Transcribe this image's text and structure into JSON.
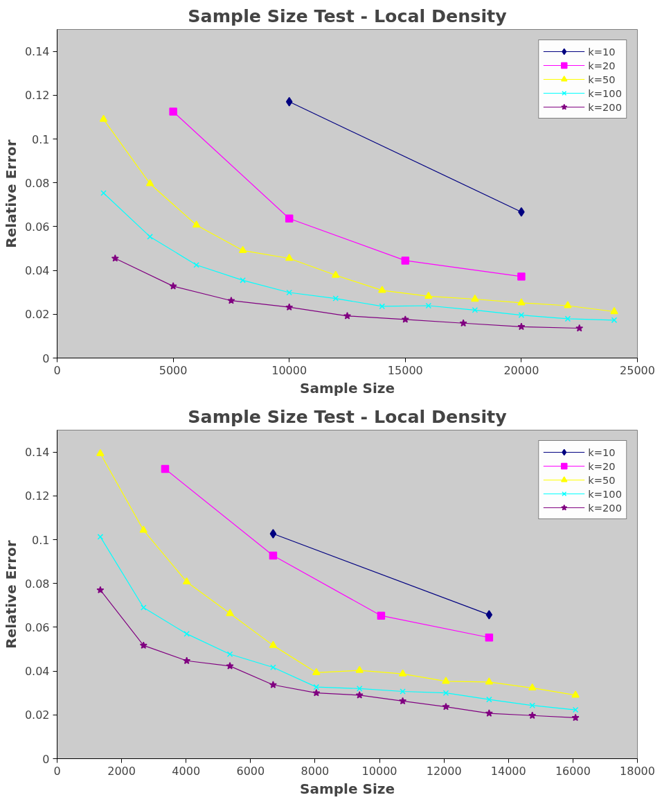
{
  "chart_data": [
    {
      "type": "line",
      "title": "Sample Size Test - Local Density",
      "xlabel": "Sample Size",
      "ylabel": "Relative Error",
      "xlim": [
        0,
        25000
      ],
      "xticks": [
        0,
        5000,
        10000,
        15000,
        20000,
        25000
      ],
      "ylim": [
        0,
        0.15
      ],
      "yticks": [
        0,
        0.02,
        0.04,
        0.06,
        0.08,
        0.1,
        0.12,
        0.14
      ],
      "grid": false,
      "legend": "top right",
      "series": [
        {
          "name": "k=10",
          "color": "#000080",
          "marker": "diamond",
          "x": [
            10000,
            20000
          ],
          "values": [
            0.117,
            0.0667
          ]
        },
        {
          "name": "k=20",
          "color": "#ff00ff",
          "marker": "square",
          "x": [
            5000,
            10000,
            15000,
            20000
          ],
          "values": [
            0.1125,
            0.0637,
            0.0445,
            0.0372
          ]
        },
        {
          "name": "k=50",
          "color": "#ffff00",
          "marker": "triangle",
          "x": [
            2000,
            4000,
            6000,
            8000,
            10000,
            12000,
            14000,
            16000,
            18000,
            20000,
            22000,
            24000
          ],
          "values": [
            0.109,
            0.0796,
            0.0607,
            0.0491,
            0.0455,
            0.0378,
            0.0309,
            0.0282,
            0.0269,
            0.0252,
            0.0239,
            0.0212
          ]
        },
        {
          "name": "k=100",
          "color": "#00ffff",
          "marker": "cross",
          "x": [
            2000,
            4000,
            6000,
            8000,
            10000,
            12000,
            14000,
            16000,
            18000,
            20000,
            22000,
            24000
          ],
          "values": [
            0.0753,
            0.0554,
            0.0425,
            0.0355,
            0.0299,
            0.0272,
            0.0236,
            0.0239,
            0.0219,
            0.0196,
            0.0179,
            0.0173
          ]
        },
        {
          "name": "k=200",
          "color": "#800080",
          "marker": "star",
          "x": [
            2500,
            5000,
            7500,
            10000,
            12500,
            15000,
            17500,
            20000,
            22500
          ],
          "values": [
            0.0455,
            0.0328,
            0.0262,
            0.0232,
            0.0192,
            0.0176,
            0.0159,
            0.0143,
            0.0136
          ]
        }
      ]
    },
    {
      "type": "line",
      "title": "Sample Size Test - Local Density",
      "xlabel": "Sample Size",
      "ylabel": "Relative Error",
      "xlim": [
        0,
        18000
      ],
      "xticks": [
        0,
        2000,
        4000,
        6000,
        8000,
        10000,
        12000,
        14000,
        16000,
        18000
      ],
      "ylim": [
        0,
        0.15
      ],
      "yticks": [
        0,
        0.02,
        0.04,
        0.06,
        0.08,
        0.1,
        0.12,
        0.14
      ],
      "grid": false,
      "legend": "top right",
      "series": [
        {
          "name": "k=10",
          "color": "#000080",
          "marker": "diamond",
          "x": [
            6700,
            13400
          ],
          "values": [
            0.1027,
            0.0657
          ]
        },
        {
          "name": "k=20",
          "color": "#ff00ff",
          "marker": "square",
          "x": [
            3350,
            6700,
            10050,
            13400
          ],
          "values": [
            0.1323,
            0.0927,
            0.0653,
            0.0553
          ]
        },
        {
          "name": "k=50",
          "color": "#ffff00",
          "marker": "triangle",
          "x": [
            1340,
            2680,
            4020,
            5360,
            6700,
            8040,
            9380,
            10720,
            12060,
            13400,
            14740,
            16080
          ],
          "values": [
            0.1393,
            0.1043,
            0.0807,
            0.0663,
            0.0517,
            0.0393,
            0.0403,
            0.0387,
            0.0353,
            0.035,
            0.0323,
            0.029
          ]
        },
        {
          "name": "k=100",
          "color": "#00ffff",
          "marker": "cross",
          "x": [
            1340,
            2680,
            4020,
            5360,
            6700,
            8040,
            9380,
            10720,
            12060,
            13400,
            14740,
            16080
          ],
          "values": [
            0.1013,
            0.069,
            0.057,
            0.0477,
            0.0417,
            0.0327,
            0.032,
            0.0307,
            0.03,
            0.027,
            0.0243,
            0.0223
          ]
        },
        {
          "name": "k=200",
          "color": "#800080",
          "marker": "star",
          "x": [
            1340,
            2680,
            4020,
            5360,
            6700,
            8040,
            9380,
            10720,
            12060,
            13400,
            14740,
            16080
          ],
          "values": [
            0.077,
            0.0517,
            0.0447,
            0.0423,
            0.0337,
            0.03,
            0.029,
            0.0263,
            0.0237,
            0.0207,
            0.0197,
            0.0187
          ]
        }
      ]
    }
  ]
}
